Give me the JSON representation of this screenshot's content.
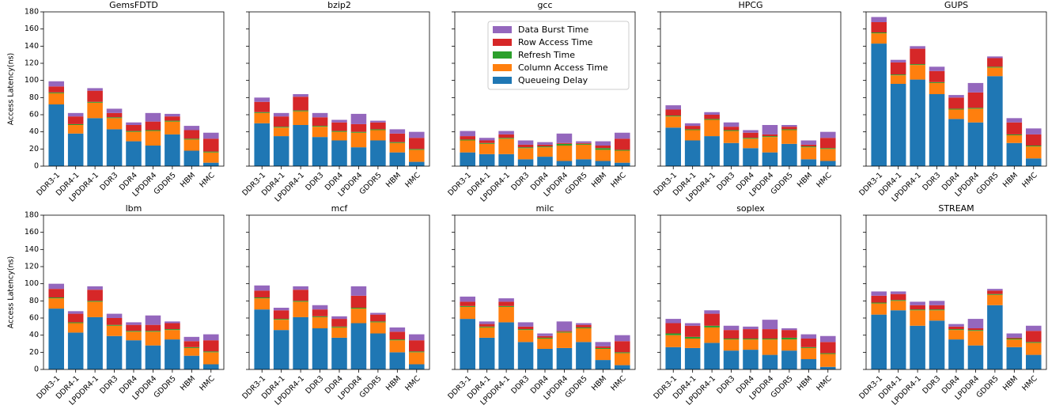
{
  "chart_data": [
    {
      "type": "bar",
      "stacked": true,
      "title": "GemsFDTD",
      "ylabel": "Access Latency(ns)",
      "categories": [
        "DDR3-1",
        "DDR4-1",
        "LPDDR4-1",
        "DDR3",
        "DDR4",
        "LPDDR4",
        "GDDR5",
        "HBM",
        "HMC"
      ],
      "ylim": [
        0,
        180
      ],
      "yticks": [
        0,
        20,
        40,
        60,
        80,
        100,
        120,
        140,
        160,
        180
      ],
      "series": [
        {
          "name": "Queueing Delay",
          "color": "#1f77b4",
          "values": [
            72,
            38,
            56,
            43,
            29,
            24,
            37,
            18,
            4
          ]
        },
        {
          "name": "Column Access Time",
          "color": "#ff7f0e",
          "values": [
            13,
            10,
            18,
            13,
            11,
            17,
            15,
            13,
            12
          ]
        },
        {
          "name": "Refresh Time",
          "color": "#2ca02c",
          "values": [
            1,
            1,
            1,
            1,
            1,
            1,
            1,
            1,
            1
          ]
        },
        {
          "name": "Row Access Time",
          "color": "#d62728",
          "values": [
            7,
            9,
            13,
            5,
            7,
            10,
            5,
            10,
            15
          ]
        },
        {
          "name": "Data Burst Time",
          "color": "#9467bd",
          "values": [
            6,
            4,
            3,
            5,
            3,
            10,
            3,
            5,
            7
          ]
        }
      ]
    },
    {
      "type": "bar",
      "stacked": true,
      "title": "bzip2",
      "categories": [
        "DDR3-1",
        "DDR4-1",
        "LPDDR4-1",
        "DDR3",
        "DDR4",
        "LPDDR4",
        "GDDR5",
        "HBM",
        "HMC"
      ],
      "ylim": [
        0,
        180
      ],
      "yticks": [
        0,
        20,
        40,
        60,
        80,
        100,
        120,
        140,
        160,
        180
      ],
      "series": [
        {
          "name": "Queueing Delay",
          "color": "#1f77b4",
          "values": [
            50,
            35,
            48,
            34,
            30,
            22,
            30,
            16,
            5
          ]
        },
        {
          "name": "Column Access Time",
          "color": "#ff7f0e",
          "values": [
            12,
            10,
            16,
            12,
            10,
            17,
            12,
            11,
            14
          ]
        },
        {
          "name": "Refresh Time",
          "color": "#2ca02c",
          "values": [
            1,
            1,
            1,
            1,
            1,
            1,
            1,
            1,
            1
          ]
        },
        {
          "name": "Row Access Time",
          "color": "#d62728",
          "values": [
            12,
            12,
            16,
            10,
            10,
            9,
            8,
            10,
            13
          ]
        },
        {
          "name": "Data Burst Time",
          "color": "#9467bd",
          "values": [
            5,
            4,
            3,
            5,
            3,
            12,
            2,
            5,
            7
          ]
        }
      ]
    },
    {
      "type": "bar",
      "stacked": true,
      "title": "gcc",
      "legend": "upper right",
      "categories": [
        "DDR3-1",
        "DDR4-1",
        "LPDDR4-1",
        "DDR3",
        "DDR4",
        "LPDDR4",
        "GDDR5",
        "HBM",
        "HMC"
      ],
      "ylim": [
        0,
        180
      ],
      "yticks": [
        0,
        20,
        40,
        60,
        80,
        100,
        120,
        140,
        160,
        180
      ],
      "series": [
        {
          "name": "Queueing Delay",
          "color": "#1f77b4",
          "values": [
            16,
            14,
            14,
            8,
            11,
            6,
            8,
            6,
            4
          ]
        },
        {
          "name": "Column Access Time",
          "color": "#ff7f0e",
          "values": [
            14,
            12,
            18,
            13,
            11,
            18,
            17,
            13,
            14
          ]
        },
        {
          "name": "Refresh Time",
          "color": "#2ca02c",
          "values": [
            1,
            1,
            1,
            1,
            1,
            2,
            1,
            2,
            1
          ]
        },
        {
          "name": "Row Access Time",
          "color": "#d62728",
          "values": [
            4,
            3,
            4,
            3,
            2,
            1,
            1,
            3,
            13
          ]
        },
        {
          "name": "Data Burst Time",
          "color": "#9467bd",
          "values": [
            6,
            3,
            4,
            5,
            3,
            11,
            2,
            5,
            7
          ]
        }
      ]
    },
    {
      "type": "bar",
      "stacked": true,
      "title": "HPCG",
      "categories": [
        "DDR3-1",
        "DDR4-1",
        "LPDDR4-1",
        "DDR3",
        "DDR4",
        "LPDDR4",
        "GDDR5",
        "HBM",
        "HMC"
      ],
      "ylim": [
        0,
        180
      ],
      "yticks": [
        0,
        20,
        40,
        60,
        80,
        100,
        120,
        140,
        160,
        180
      ],
      "series": [
        {
          "name": "Queueing Delay",
          "color": "#1f77b4",
          "values": [
            45,
            30,
            35,
            27,
            21,
            16,
            26,
            8,
            6
          ]
        },
        {
          "name": "Column Access Time",
          "color": "#ff7f0e",
          "values": [
            13,
            12,
            19,
            14,
            11,
            18,
            16,
            14,
            14
          ]
        },
        {
          "name": "Refresh Time",
          "color": "#2ca02c",
          "values": [
            1,
            1,
            1,
            1,
            1,
            1,
            1,
            1,
            1
          ]
        },
        {
          "name": "Row Access Time",
          "color": "#d62728",
          "values": [
            7,
            4,
            5,
            4,
            6,
            2,
            3,
            2,
            12
          ]
        },
        {
          "name": "Data Burst Time",
          "color": "#9467bd",
          "values": [
            5,
            3,
            3,
            5,
            3,
            11,
            2,
            5,
            7
          ]
        }
      ]
    },
    {
      "type": "bar",
      "stacked": true,
      "title": "GUPS",
      "categories": [
        "DDR3-1",
        "DDR4-1",
        "LPDDR4-1",
        "DDR3",
        "DDR4",
        "LPDDR4",
        "GDDR5",
        "HBM",
        "HMC"
      ],
      "ylim": [
        0,
        180
      ],
      "yticks": [
        0,
        20,
        40,
        60,
        80,
        100,
        120,
        140,
        160,
        180
      ],
      "series": [
        {
          "name": "Queueing Delay",
          "color": "#1f77b4",
          "values": [
            143,
            96,
            101,
            84,
            55,
            51,
            105,
            27,
            9
          ]
        },
        {
          "name": "Column Access Time",
          "color": "#ff7f0e",
          "values": [
            12,
            10,
            17,
            13,
            11,
            16,
            10,
            9,
            14
          ]
        },
        {
          "name": "Refresh Time",
          "color": "#2ca02c",
          "values": [
            1,
            1,
            1,
            1,
            1,
            1,
            1,
            1,
            1
          ]
        },
        {
          "name": "Row Access Time",
          "color": "#d62728",
          "values": [
            12,
            14,
            18,
            13,
            13,
            18,
            10,
            14,
            13
          ]
        },
        {
          "name": "Data Burst Time",
          "color": "#9467bd",
          "values": [
            6,
            3,
            3,
            5,
            3,
            11,
            2,
            5,
            7
          ]
        }
      ]
    },
    {
      "type": "bar",
      "stacked": true,
      "title": "lbm",
      "ylabel": "Access Latency(ns)",
      "categories": [
        "DDR3-1",
        "DDR4-1",
        "LPDDR4-1",
        "DDR3",
        "DDR4",
        "LPDDR4",
        "GDDR5",
        "HBM",
        "HMC"
      ],
      "ylim": [
        0,
        180
      ],
      "yticks": [
        0,
        20,
        40,
        60,
        80,
        100,
        120,
        140,
        160,
        180
      ],
      "series": [
        {
          "name": "Queueing Delay",
          "color": "#1f77b4",
          "values": [
            71,
            43,
            61,
            39,
            34,
            28,
            35,
            16,
            6
          ]
        },
        {
          "name": "Column Access Time",
          "color": "#ff7f0e",
          "values": [
            12,
            11,
            18,
            12,
            10,
            16,
            11,
            9,
            14
          ]
        },
        {
          "name": "Refresh Time",
          "color": "#2ca02c",
          "values": [
            1,
            1,
            1,
            1,
            1,
            1,
            1,
            1,
            1
          ]
        },
        {
          "name": "Row Access Time",
          "color": "#d62728",
          "values": [
            10,
            10,
            13,
            8,
            7,
            7,
            7,
            7,
            13
          ]
        },
        {
          "name": "Data Burst Time",
          "color": "#9467bd",
          "values": [
            6,
            3,
            4,
            5,
            3,
            11,
            2,
            5,
            7
          ]
        }
      ]
    },
    {
      "type": "bar",
      "stacked": true,
      "title": "mcf",
      "categories": [
        "DDR3-1",
        "DDR4-1",
        "LPDDR4-1",
        "DDR3",
        "DDR4",
        "LPDDR4",
        "GDDR5",
        "HBM",
        "HMC"
      ],
      "ylim": [
        0,
        180
      ],
      "yticks": [
        0,
        20,
        40,
        60,
        80,
        100,
        120,
        140,
        160,
        180
      ],
      "series": [
        {
          "name": "Queueing Delay",
          "color": "#1f77b4",
          "values": [
            70,
            46,
            61,
            48,
            37,
            54,
            42,
            20,
            6
          ]
        },
        {
          "name": "Column Access Time",
          "color": "#ff7f0e",
          "values": [
            13,
            12,
            18,
            13,
            12,
            17,
            13,
            14,
            14
          ]
        },
        {
          "name": "Refresh Time",
          "color": "#2ca02c",
          "values": [
            1,
            1,
            1,
            1,
            1,
            1,
            1,
            1,
            1
          ]
        },
        {
          "name": "Row Access Time",
          "color": "#d62728",
          "values": [
            8,
            10,
            13,
            8,
            9,
            14,
            8,
            9,
            13
          ]
        },
        {
          "name": "Data Burst Time",
          "color": "#9467bd",
          "values": [
            6,
            3,
            4,
            5,
            3,
            11,
            2,
            5,
            7
          ]
        }
      ]
    },
    {
      "type": "bar",
      "stacked": true,
      "title": "milc",
      "categories": [
        "DDR3-1",
        "DDR4-1",
        "LPDDR4-1",
        "DDR3",
        "DDR4",
        "LPDDR4",
        "GDDR5",
        "HBM",
        "HMC"
      ],
      "ylim": [
        0,
        180
      ],
      "yticks": [
        0,
        20,
        40,
        60,
        80,
        100,
        120,
        140,
        160,
        180
      ],
      "series": [
        {
          "name": "Queueing Delay",
          "color": "#1f77b4",
          "values": [
            59,
            37,
            55,
            32,
            24,
            25,
            32,
            11,
            5
          ]
        },
        {
          "name": "Column Access Time",
          "color": "#ff7f0e",
          "values": [
            14,
            12,
            18,
            14,
            12,
            18,
            16,
            13,
            14
          ]
        },
        {
          "name": "Refresh Time",
          "color": "#2ca02c",
          "values": [
            1,
            1,
            1,
            1,
            1,
            1,
            1,
            1,
            1
          ]
        },
        {
          "name": "Row Access Time",
          "color": "#d62728",
          "values": [
            5,
            3,
            5,
            3,
            2,
            1,
            3,
            2,
            13
          ]
        },
        {
          "name": "Data Burst Time",
          "color": "#9467bd",
          "values": [
            6,
            3,
            4,
            5,
            3,
            11,
            2,
            5,
            7
          ]
        }
      ]
    },
    {
      "type": "bar",
      "stacked": true,
      "title": "soplex",
      "categories": [
        "DDR3-1",
        "DDR4-1",
        "LPDDR4-1",
        "DDR3",
        "DDR4",
        "LPDDR4",
        "GDDR5",
        "HBM",
        "HMC"
      ],
      "ylim": [
        0,
        180
      ],
      "yticks": [
        0,
        20,
        40,
        60,
        80,
        100,
        120,
        140,
        160,
        180
      ],
      "series": [
        {
          "name": "Queueing Delay",
          "color": "#1f77b4",
          "values": [
            26,
            25,
            31,
            22,
            23,
            17,
            22,
            12,
            3
          ]
        },
        {
          "name": "Column Access Time",
          "color": "#ff7f0e",
          "values": [
            14,
            11,
            18,
            13,
            12,
            18,
            13,
            13,
            15
          ]
        },
        {
          "name": "Refresh Time",
          "color": "#2ca02c",
          "values": [
            2,
            2,
            2,
            1,
            1,
            1,
            2,
            1,
            1
          ]
        },
        {
          "name": "Row Access Time",
          "color": "#d62728",
          "values": [
            12,
            13,
            14,
            10,
            11,
            11,
            9,
            10,
            13
          ]
        },
        {
          "name": "Data Burst Time",
          "color": "#9467bd",
          "values": [
            5,
            3,
            4,
            5,
            3,
            11,
            2,
            5,
            7
          ]
        }
      ]
    },
    {
      "type": "bar",
      "stacked": true,
      "title": "STREAM",
      "categories": [
        "DDR3-1",
        "DDR4-1",
        "LPDDR4-1",
        "DDR3",
        "DDR4",
        "LPDDR4",
        "GDDR5",
        "HBM",
        "HMC"
      ],
      "ylim": [
        0,
        180
      ],
      "yticks": [
        0,
        20,
        40,
        60,
        80,
        100,
        120,
        140,
        160,
        180
      ],
      "series": [
        {
          "name": "Queueing Delay",
          "color": "#1f77b4",
          "values": [
            64,
            69,
            51,
            57,
            35,
            28,
            75,
            26,
            17
          ]
        },
        {
          "name": "Column Access Time",
          "color": "#ff7f0e",
          "values": [
            13,
            11,
            18,
            12,
            11,
            17,
            12,
            9,
            14
          ]
        },
        {
          "name": "Refresh Time",
          "color": "#2ca02c",
          "values": [
            1,
            1,
            1,
            1,
            1,
            1,
            1,
            1,
            1
          ]
        },
        {
          "name": "Row Access Time",
          "color": "#d62728",
          "values": [
            8,
            7,
            5,
            5,
            3,
            2,
            4,
            1,
            13
          ]
        },
        {
          "name": "Data Burst Time",
          "color": "#9467bd",
          "values": [
            5,
            3,
            4,
            5,
            3,
            11,
            2,
            5,
            6
          ]
        }
      ]
    }
  ]
}
